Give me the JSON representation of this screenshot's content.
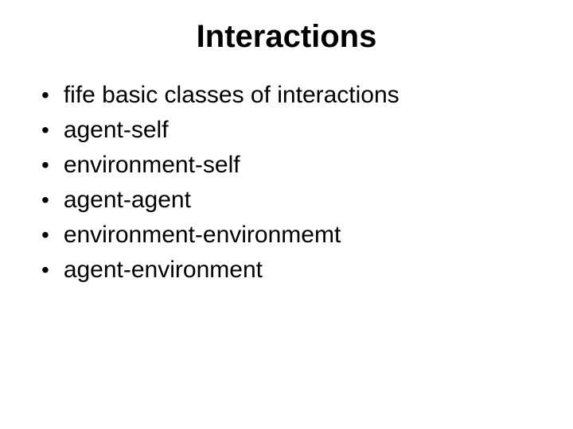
{
  "slide": {
    "title": "Interactions",
    "bullets": [
      "fife basic classes of interactions",
      "agent-self",
      "environment-self",
      "agent-agent",
      "environment-environmemt",
      "agent-environment"
    ]
  },
  "style": {
    "background_color": "#ffffff",
    "text_color": "#000000",
    "title_fontsize": 40,
    "title_fontweight": "bold",
    "bullet_fontsize": 30,
    "bullet_marker": "•",
    "font_family": "Arial, Helvetica, sans-serif"
  }
}
